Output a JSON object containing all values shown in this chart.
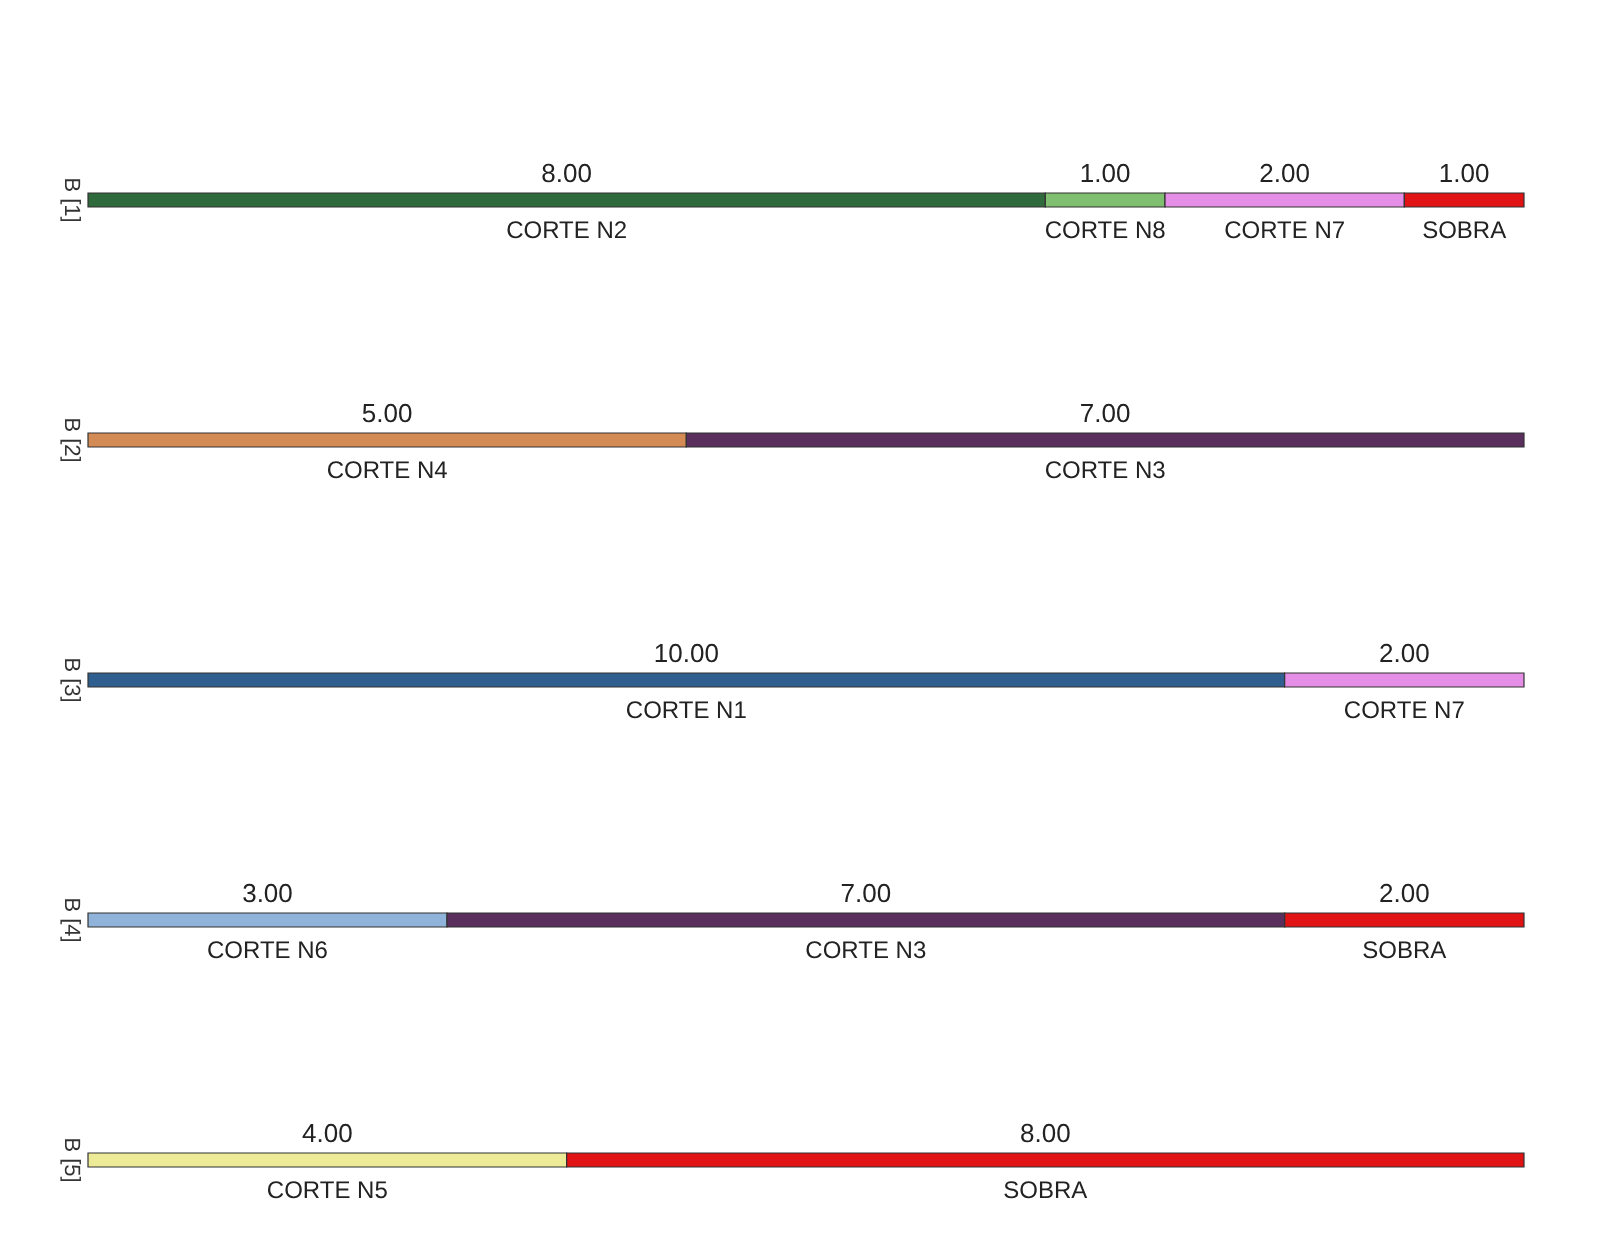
{
  "chart_data": {
    "type": "bar",
    "orientation": "horizontal",
    "stacked": true,
    "legend": false,
    "categories": [
      "B [1]",
      "B [2]",
      "B [3]",
      "B [4]",
      "B [5]"
    ],
    "series": [
      {
        "name": "CORTE N2",
        "color": "#2f6a3c",
        "values": [
          8,
          null,
          null,
          null,
          null
        ],
        "value_labels": [
          "8.00",
          null,
          null,
          null,
          null
        ]
      },
      {
        "name": "CORTE N4",
        "color": "#d48a55",
        "values": [
          null,
          5,
          null,
          null,
          null
        ],
        "value_labels": [
          null,
          "5.00",
          null,
          null,
          null
        ]
      },
      {
        "name": "CORTE N1",
        "color": "#2f5f8f",
        "values": [
          null,
          null,
          10,
          null,
          null
        ],
        "value_labels": [
          null,
          null,
          "10.00",
          null,
          null
        ]
      },
      {
        "name": "CORTE N6",
        "color": "#8fb3d9",
        "values": [
          null,
          null,
          null,
          3,
          null
        ],
        "value_labels": [
          null,
          null,
          null,
          "3.00",
          null
        ]
      },
      {
        "name": "CORTE N5",
        "color": "#eeeb98",
        "values": [
          null,
          null,
          null,
          null,
          4
        ],
        "value_labels": [
          null,
          null,
          null,
          null,
          "4.00"
        ]
      },
      {
        "name": "CORTE N8",
        "color": "#7fbf6f",
        "values": [
          1,
          null,
          null,
          null,
          null
        ],
        "value_labels": [
          "1.00",
          null,
          null,
          null,
          null
        ]
      },
      {
        "name": "CORTE N3",
        "color": "#5a2f5e",
        "values": [
          null,
          7,
          null,
          7,
          null
        ],
        "value_labels": [
          null,
          "7.00",
          null,
          "7.00",
          null
        ]
      },
      {
        "name": "CORTE N7",
        "color": "#e58ee5",
        "values": [
          2,
          null,
          2,
          null,
          null
        ],
        "value_labels": [
          "2.00",
          null,
          "2.00",
          null,
          null
        ]
      },
      {
        "name": "SOBRA",
        "color": "#e01414",
        "values": [
          1,
          null,
          null,
          2,
          8
        ],
        "value_labels": [
          "1.00",
          null,
          null,
          "2.00",
          "8.00"
        ]
      }
    ]
  }
}
